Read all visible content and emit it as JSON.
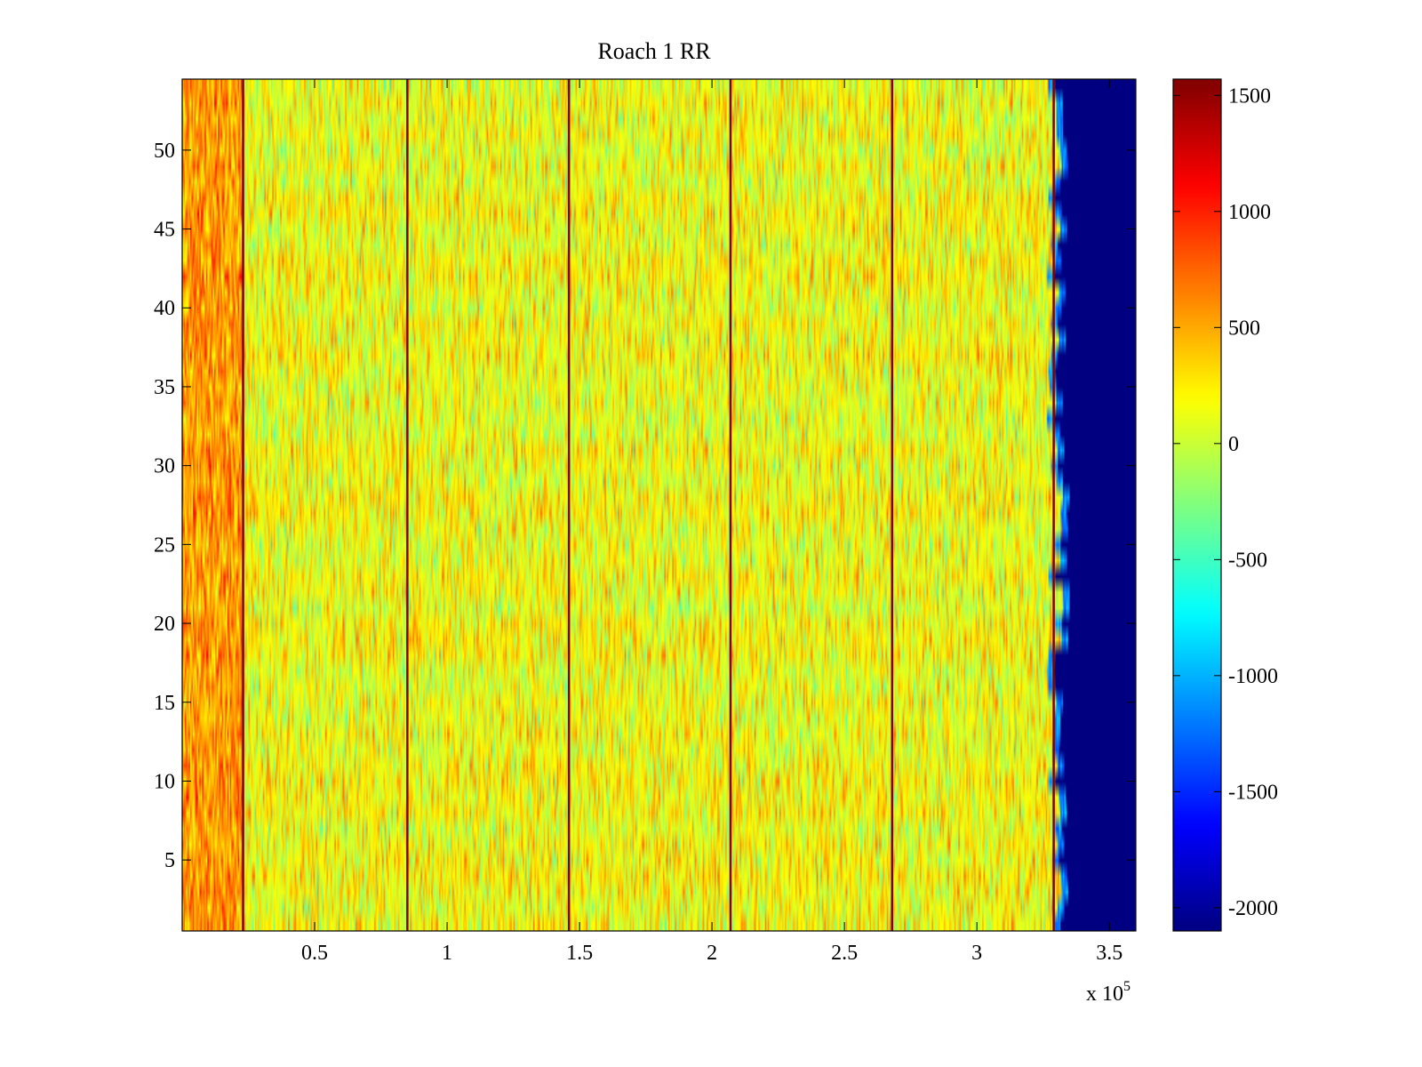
{
  "chart_data": {
    "type": "heatmap",
    "title": "Roach 1 RR",
    "xlabel": "",
    "ylabel": "",
    "x_exponent_label": "x 10",
    "x_exponent_power": "5",
    "xlim": [
      0,
      3.6
    ],
    "ylim": [
      0.5,
      54.5
    ],
    "x_ticks": [
      0.5,
      1,
      1.5,
      2,
      2.5,
      3,
      3.5
    ],
    "x_tick_labels": [
      "0.5",
      "1",
      "1.5",
      "2",
      "2.5",
      "3",
      "3.5"
    ],
    "y_ticks": [
      5,
      10,
      15,
      20,
      25,
      30,
      35,
      40,
      45,
      50
    ],
    "y_tick_labels": [
      "5",
      "10",
      "15",
      "20",
      "25",
      "30",
      "35",
      "40",
      "45",
      "50"
    ],
    "rows": 54,
    "colormap": "jet",
    "clim": [
      -2100,
      1570
    ],
    "colorbar_ticks": [
      1500,
      1000,
      500,
      0,
      -500,
      -1000,
      -1500,
      -2000
    ],
    "colorbar_tick_labels": [
      "1500",
      "1000",
      "500",
      "0",
      "-500",
      "-1000",
      "-1500",
      "-2000"
    ],
    "typical_value_range": [
      -600,
      700
    ],
    "left_band_mean": 550,
    "body_mean": 150,
    "data_end_x": 3.29,
    "fill_value_after_end": -2100,
    "vertical_spike_lines_x": [
      0.23,
      0.85,
      1.46,
      2.07,
      2.68,
      3.29
    ],
    "spike_value": 1570,
    "grid": false
  }
}
